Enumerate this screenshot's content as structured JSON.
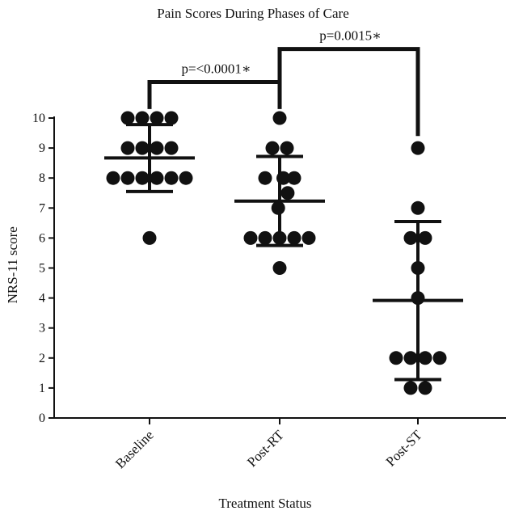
{
  "chart_data": {
    "type": "scatter",
    "title": "Pain Scores During Phases of Care",
    "xlabel": "Treatment Status",
    "ylabel": "NRS-11 score",
    "ylim": [
      0,
      10
    ],
    "yticks": [
      "0",
      "1",
      "2",
      "3",
      "4",
      "5",
      "6",
      "7",
      "8",
      "9",
      "10"
    ],
    "grid": false,
    "legend": "none",
    "marker_color": "#111111",
    "categories": [
      "Baseline",
      "Post-RT",
      "Post-ST"
    ],
    "groups": [
      {
        "category": "Baseline",
        "mean": 8.67,
        "sd_lower": 7.55,
        "sd_upper": 9.78,
        "points": [
          {
            "offset": -1.5,
            "y": 10
          },
          {
            "offset": -0.5,
            "y": 10
          },
          {
            "offset": 0.5,
            "y": 10
          },
          {
            "offset": 1.5,
            "y": 10
          },
          {
            "offset": -1.5,
            "y": 9
          },
          {
            "offset": -0.5,
            "y": 9
          },
          {
            "offset": 0.5,
            "y": 9
          },
          {
            "offset": 1.5,
            "y": 9
          },
          {
            "offset": -2.5,
            "y": 8
          },
          {
            "offset": -1.5,
            "y": 8
          },
          {
            "offset": -0.5,
            "y": 8
          },
          {
            "offset": 0.5,
            "y": 8
          },
          {
            "offset": 1.5,
            "y": 8
          },
          {
            "offset": 2.5,
            "y": 8
          },
          {
            "offset": 0,
            "y": 6
          }
        ]
      },
      {
        "category": "Post-RT",
        "mean": 7.23,
        "sd_lower": 5.75,
        "sd_upper": 8.72,
        "points": [
          {
            "offset": 0,
            "y": 10
          },
          {
            "offset": -0.5,
            "y": 9
          },
          {
            "offset": 0.5,
            "y": 9
          },
          {
            "offset": -1,
            "y": 8
          },
          {
            "offset": 0.25,
            "y": 8
          },
          {
            "offset": 1,
            "y": 8
          },
          {
            "offset": 0.55,
            "y": 7.5
          },
          {
            "offset": -0.1,
            "y": 7
          },
          {
            "offset": -2,
            "y": 6
          },
          {
            "offset": -1,
            "y": 6
          },
          {
            "offset": 0,
            "y": 6
          },
          {
            "offset": 1,
            "y": 6
          },
          {
            "offset": 2,
            "y": 6
          },
          {
            "offset": 0,
            "y": 5
          }
        ]
      },
      {
        "category": "Post-ST",
        "mean": 3.92,
        "sd_lower": 1.28,
        "sd_upper": 6.55,
        "points": [
          {
            "offset": 0,
            "y": 9
          },
          {
            "offset": 0,
            "y": 7
          },
          {
            "offset": -0.5,
            "y": 6
          },
          {
            "offset": 0.5,
            "y": 6
          },
          {
            "offset": 0,
            "y": 5
          },
          {
            "offset": 0,
            "y": 4
          },
          {
            "offset": -1.5,
            "y": 2
          },
          {
            "offset": -0.5,
            "y": 2
          },
          {
            "offset": 0.5,
            "y": 2
          },
          {
            "offset": 1.5,
            "y": 2
          },
          {
            "offset": -0.5,
            "y": 1
          },
          {
            "offset": 0.5,
            "y": 1
          }
        ]
      }
    ],
    "annotations": [
      {
        "label": "p=<0.0001∗",
        "from": "Baseline",
        "to": "Post-RT",
        "level": 11.2,
        "drop": 10.3
      },
      {
        "label": "p=0.0015∗",
        "from": "Post-RT",
        "to": "Post-ST",
        "level": 12.3,
        "drop_from": 11.2,
        "drop": 9.4
      }
    ]
  }
}
